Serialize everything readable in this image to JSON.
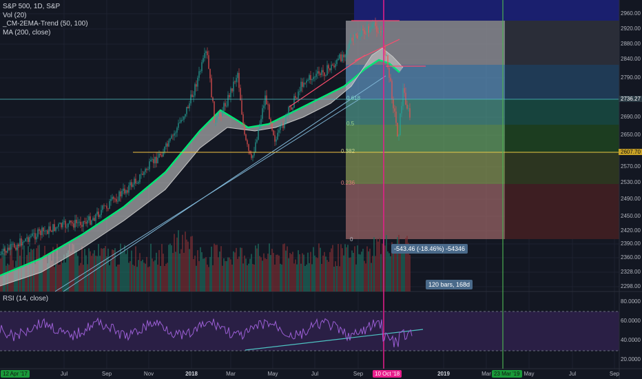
{
  "legend": {
    "symbol": "S&P 500, 1D, S&P",
    "vol": "Vol (20)",
    "trend": "_CM-2EMA-Trend (50, 100)",
    "ma": "MA (200, close)"
  },
  "rsi": {
    "label": "RSI (14, close)"
  },
  "price_axis": {
    "labels": [
      "2960.00",
      "2920.00",
      "2880.00",
      "2840.00",
      "2790.00",
      "2736.27",
      "2690.00",
      "2650.00",
      "2607.70",
      "2570.00",
      "2530.00",
      "2490.00",
      "2450.00",
      "2420.00",
      "2390.00",
      "2360.00",
      "2328.00",
      "2298.00"
    ],
    "current_price": "2736.27",
    "hline_price": "2607.70"
  },
  "rsi_axis": {
    "labels": [
      "80.0000",
      "60.0000",
      "40.0000",
      "20.0000"
    ]
  },
  "time_axis": {
    "labels": [
      "Jul",
      "Sep",
      "Nov",
      "2018",
      "Mar",
      "May",
      "Jul",
      "Sep",
      "2019",
      "Mar",
      "May",
      "Jul",
      "Sep"
    ],
    "left_badge": "12 Apr '17",
    "cursor_badge": "10 Oct '18",
    "right_badge": "23 Mar '19"
  },
  "fib_levels": [
    "0.618",
    "0.5",
    "0.382",
    "0.236",
    "0"
  ],
  "measure": {
    "change": "-543.46 (-18.46%) -54346",
    "bars": "120 bars, 168d"
  },
  "colors": {
    "background": "#131722",
    "up": "#26a69a",
    "down": "#ef5350",
    "ema": "#00e676",
    "cursor": "#e91e8c",
    "vertical_green": "#4caf50",
    "hline": "#f5c542",
    "price_badge": "#2a3a44"
  }
}
